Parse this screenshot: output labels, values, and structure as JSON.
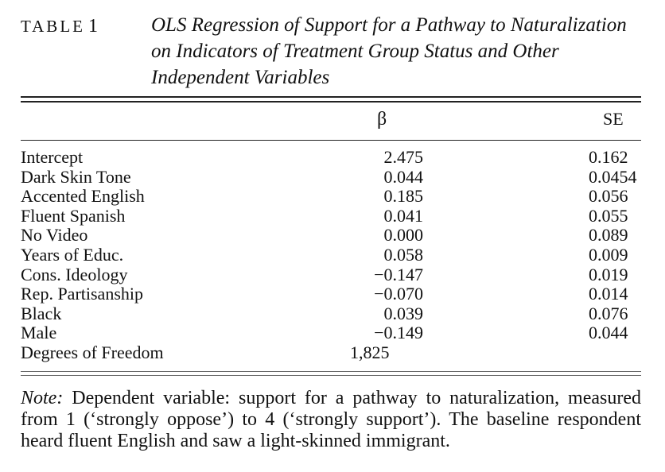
{
  "header": {
    "table_word": "TABLE",
    "table_number": "1",
    "caption": "OLS Regression of Support for a Pathway to Naturalization on Indicators of Treatment Group Status and Other Independent Variables"
  },
  "columns": {
    "beta": "β",
    "se": "SE"
  },
  "rows": [
    {
      "label": "Intercept",
      "beta": "2.475",
      "se": "0.162"
    },
    {
      "label": "Dark Skin Tone",
      "beta": "0.044",
      "se": "0.0454"
    },
    {
      "label": "Accented English",
      "beta": "0.185",
      "se": "0.056"
    },
    {
      "label": "Fluent Spanish",
      "beta": "0.041",
      "se": "0.055"
    },
    {
      "label": "No Video",
      "beta": "0.000",
      "se": "0.089"
    },
    {
      "label": "Years of Educ.",
      "beta": "0.058",
      "se": "0.009"
    },
    {
      "label": "Cons. Ideology",
      "beta": "−0.147",
      "se": "0.019"
    },
    {
      "label": "Rep. Partisanship",
      "beta": "−0.070",
      "se": "0.014"
    },
    {
      "label": "Black",
      "beta": "0.039",
      "se": "0.076"
    },
    {
      "label": "Male",
      "beta": "−0.149",
      "se": "0.044"
    }
  ],
  "df_row": {
    "label": "Degrees of Freedom",
    "value": "1,825"
  },
  "note": {
    "lead": "Note:",
    "text": " Dependent variable: support for a pathway to naturalization, measured from 1 (‘strongly oppose’) to 4 (‘strongly support’). The baseline respondent heard fluent English and saw a light-skinned immigrant."
  }
}
